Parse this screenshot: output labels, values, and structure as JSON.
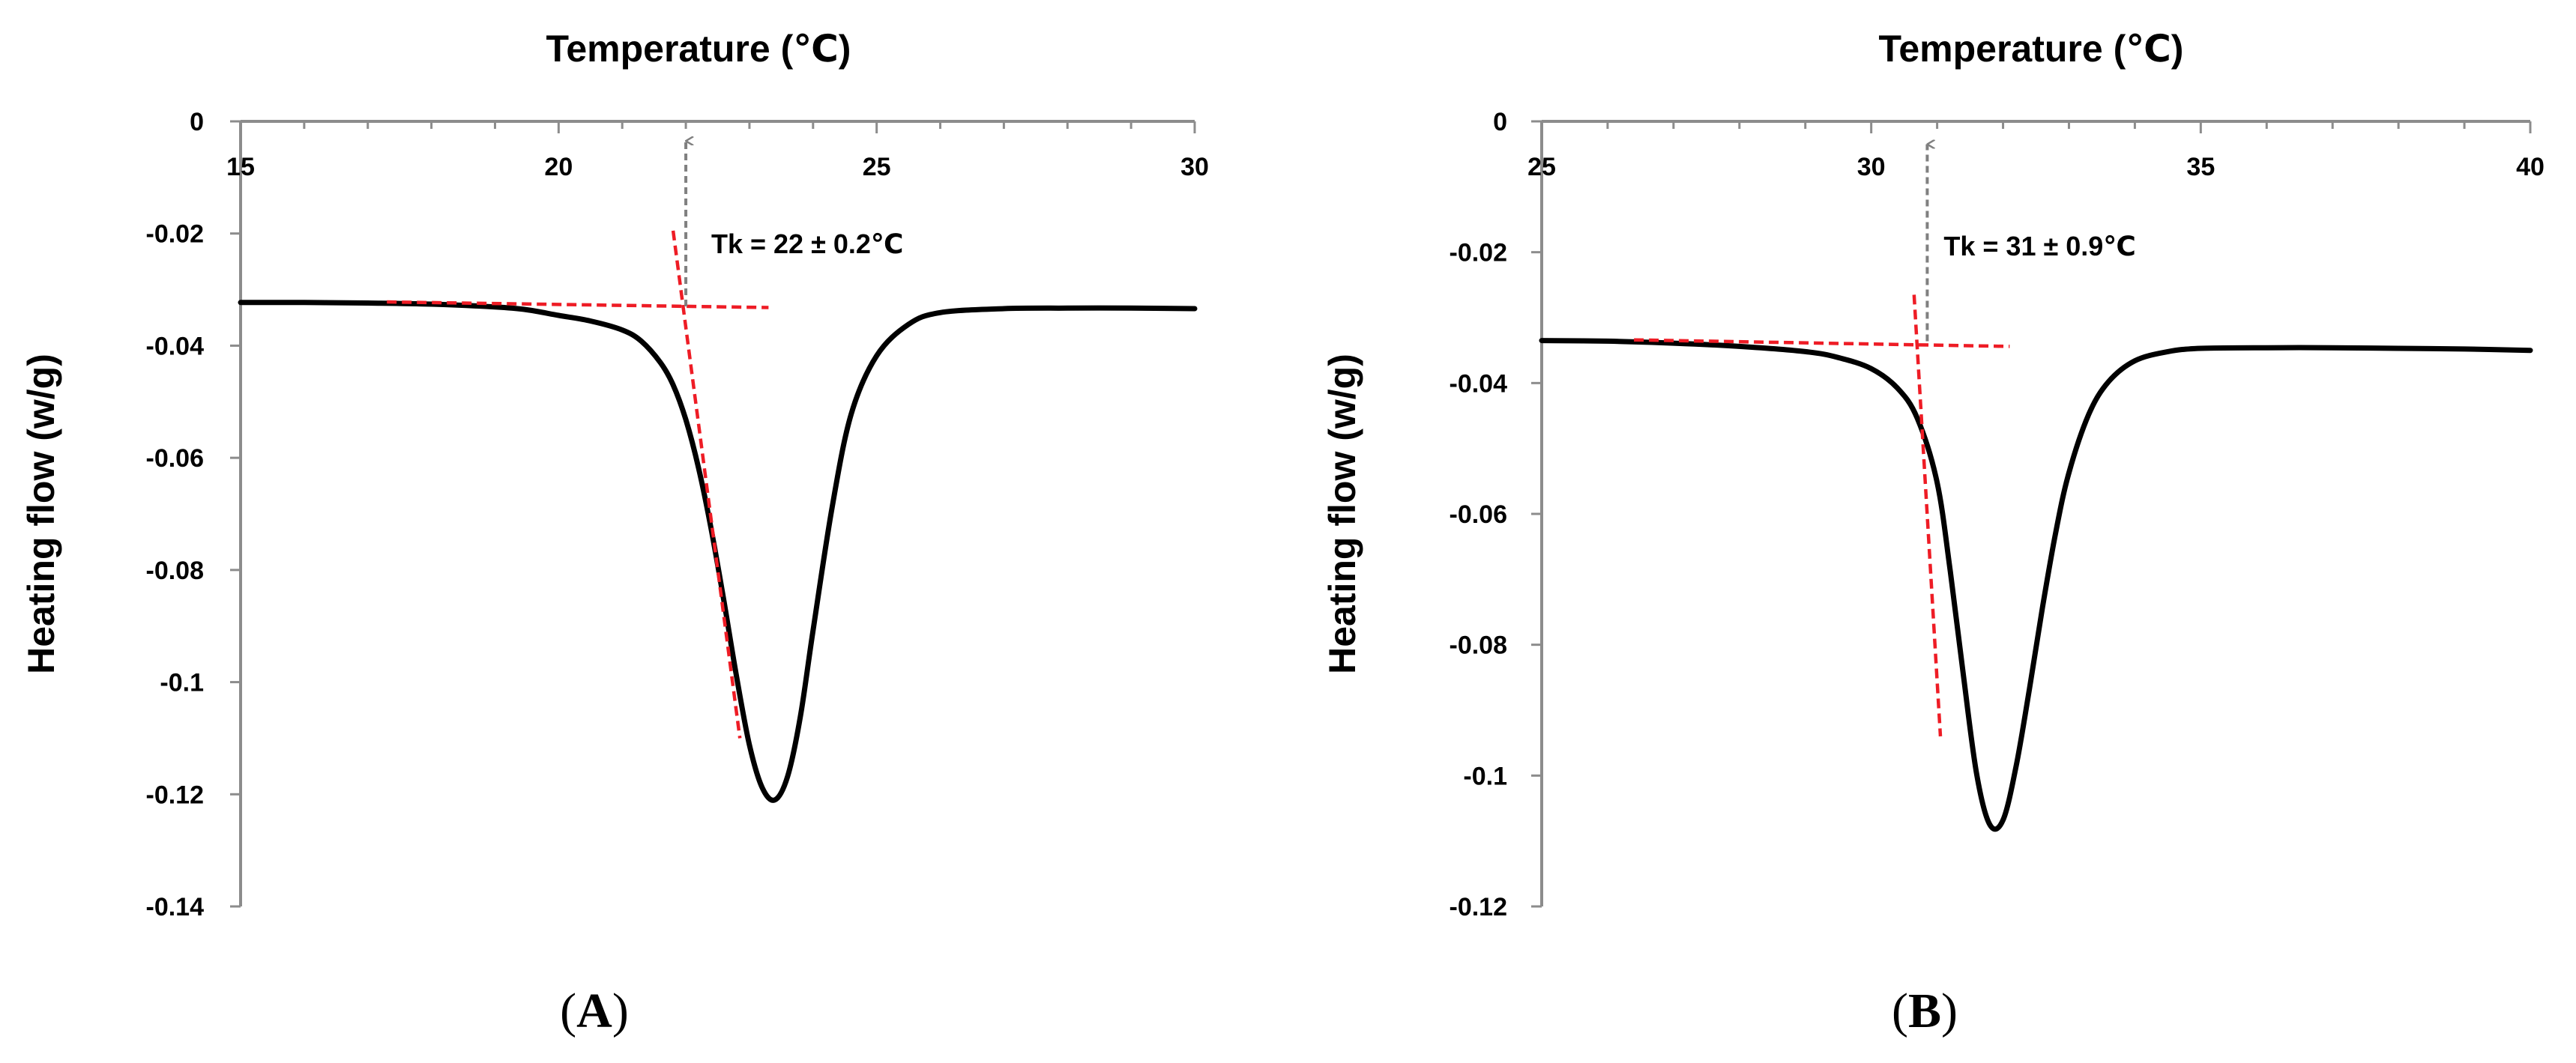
{
  "chart_data": [
    {
      "type": "line",
      "panel": "A",
      "x_title": "Temperature (℃)",
      "y_title": "Heating flow (w/g)",
      "xlim": [
        15,
        30
      ],
      "x_ticks": [
        15,
        20,
        25,
        30
      ],
      "x_tick_labels": [
        "15",
        "20",
        "25",
        "30"
      ],
      "ylim": [
        -0.14,
        0
      ],
      "y_ticks": [
        0,
        -0.02,
        -0.04,
        -0.06,
        -0.08,
        -0.1,
        -0.12,
        -0.14
      ],
      "y_tick_labels": [
        "0",
        "-0.02",
        "-0.04",
        "-0.06",
        "-0.08",
        "-0.1",
        "-0.12",
        "-0.14"
      ],
      "series": [
        {
          "name": "Heating flow",
          "color": "#000000",
          "x": [
            15,
            16,
            17,
            18,
            19,
            19.5,
            20,
            20.5,
            21,
            21.3,
            21.6,
            21.8,
            22,
            22.2,
            22.4,
            22.6,
            22.8,
            23.0,
            23.2,
            23.4,
            23.6,
            23.8,
            24.0,
            24.3,
            24.6,
            25,
            25.5,
            26,
            27,
            28,
            29,
            30
          ],
          "y": [
            -0.0323,
            -0.0323,
            -0.0324,
            -0.0326,
            -0.0331,
            -0.0336,
            -0.0346,
            -0.0356,
            -0.0372,
            -0.0392,
            -0.043,
            -0.047,
            -0.0532,
            -0.0618,
            -0.0728,
            -0.0856,
            -0.0992,
            -0.1112,
            -0.1188,
            -0.121,
            -0.1168,
            -0.1062,
            -0.0908,
            -0.0688,
            -0.0522,
            -0.0418,
            -0.0362,
            -0.0341,
            -0.0334,
            -0.0333,
            -0.0333,
            -0.0334
          ]
        }
      ],
      "tangent_baseline": {
        "color": "#ee1c25",
        "x": [
          17.3,
          23.3
        ],
        "y": [
          -0.0322,
          -0.0332
        ]
      },
      "tangent_slope": {
        "color": "#ee1c25",
        "x": [
          21.8,
          22.85
        ],
        "y": [
          -0.0195,
          -0.11
        ]
      },
      "arrow": {
        "color": "#808080",
        "x": 22.0,
        "y_from": -0.033,
        "y_to": -0.0035
      },
      "annotation": {
        "text": "Tk = 22 ± 0.2℃",
        "x": 22.4,
        "y": -0.0235
      },
      "label_paren_open": "(",
      "label_letter": "A",
      "label_paren_close": ")"
    },
    {
      "type": "line",
      "panel": "B",
      "x_title": "Temperature (℃)",
      "y_title": "Heating flow (w/g)",
      "xlim": [
        25,
        40
      ],
      "x_ticks": [
        25,
        30,
        35,
        40
      ],
      "x_tick_labels": [
        "25",
        "30",
        "35",
        "40"
      ],
      "ylim": [
        -0.12,
        0
      ],
      "y_ticks": [
        0,
        -0.02,
        -0.04,
        -0.06,
        -0.08,
        -0.1,
        -0.12
      ],
      "y_tick_labels": [
        "0",
        "-0.02",
        "-0.04",
        "-0.06",
        "-0.08",
        "-0.1",
        "-0.12"
      ],
      "series": [
        {
          "name": "Heating flow",
          "color": "#000000",
          "x": [
            25,
            26,
            27,
            28,
            29,
            29.5,
            30,
            30.4,
            30.7,
            31.0,
            31.2,
            31.4,
            31.6,
            31.8,
            32.0,
            32.2,
            32.4,
            32.6,
            32.8,
            33.0,
            33.3,
            33.6,
            34,
            34.5,
            35,
            36,
            37,
            38,
            39,
            40
          ],
          "y": [
            -0.0335,
            -0.0336,
            -0.0339,
            -0.0344,
            -0.0352,
            -0.0361,
            -0.0378,
            -0.0408,
            -0.0454,
            -0.0552,
            -0.0688,
            -0.0848,
            -0.0998,
            -0.1075,
            -0.1068,
            -0.0985,
            -0.0868,
            -0.0742,
            -0.0628,
            -0.0537,
            -0.0448,
            -0.0398,
            -0.0366,
            -0.0352,
            -0.0347,
            -0.0346,
            -0.0346,
            -0.0347,
            -0.0348,
            -0.035
          ]
        }
      ],
      "tangent_baseline": {
        "color": "#ee1c25",
        "x": [
          26.4,
          32.1
        ],
        "y": [
          -0.0334,
          -0.0344
        ]
      },
      "tangent_slope": {
        "color": "#ee1c25",
        "x": [
          30.65,
          31.05
        ],
        "y": [
          -0.0265,
          -0.094
        ]
      },
      "arrow": {
        "color": "#808080",
        "x": 30.85,
        "y_from": -0.0336,
        "y_to": -0.0035
      },
      "annotation": {
        "text": "Tk = 31 ± 0.9℃",
        "x": 31.1,
        "y": -0.0205
      },
      "label_paren_open": "(",
      "label_letter": "B",
      "label_paren_close": ")"
    }
  ]
}
